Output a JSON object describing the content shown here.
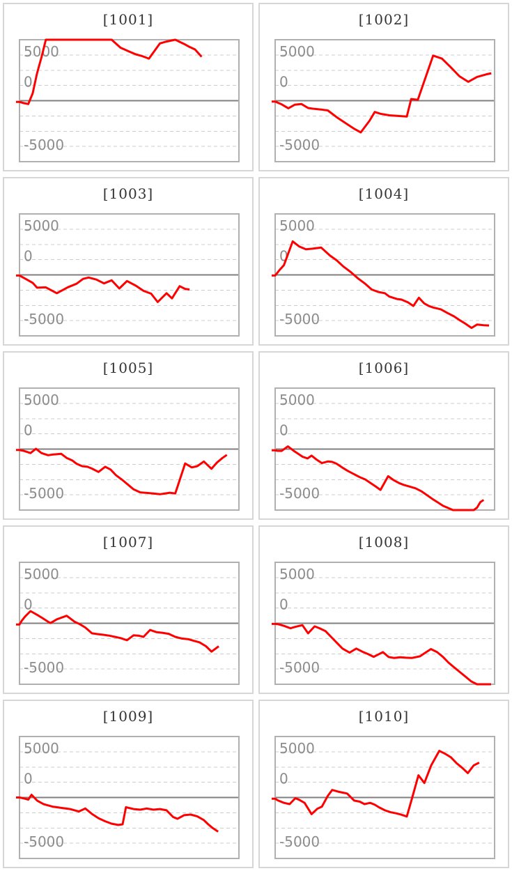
{
  "page": {
    "background": "#ffffff"
  },
  "colors": {
    "panel_border": "#d6d6d6",
    "plot_border": "#b0b0b0",
    "grid_line": "#cccccc",
    "zero_line": "#7f7f7f",
    "series": "#ff0000",
    "axis_label": "#8c8c8c",
    "title": "#333333"
  },
  "axis": {
    "y_min": -10000,
    "y_max": 10000,
    "grid_interval": 2500,
    "grid_style": "dashed",
    "zero_line_style": "solid",
    "tick_labels": [
      {
        "text": "5000",
        "value": 5000
      },
      {
        "text": "0",
        "value": 0
      },
      {
        "text": "-5000",
        "value": -5000
      }
    ]
  },
  "chart_data": [
    {
      "type": "line",
      "machine_id": "1001",
      "title": "[1001]",
      "x_unit": "percent_of_plot_width",
      "y_unit": "payout",
      "points": [
        [
          0,
          -200
        ],
        [
          2,
          -400
        ],
        [
          4,
          -550
        ],
        [
          6,
          1200
        ],
        [
          8,
          4500
        ],
        [
          10,
          7100
        ],
        [
          12,
          10000
        ],
        [
          42,
          10000
        ],
        [
          46,
          8700
        ],
        [
          50,
          8060
        ],
        [
          53,
          7600
        ],
        [
          56,
          7300
        ],
        [
          59,
          6900
        ],
        [
          64,
          9400
        ],
        [
          67,
          9700
        ],
        [
          71,
          10000
        ],
        [
          75,
          9300
        ],
        [
          77,
          8900
        ],
        [
          80,
          8400
        ],
        [
          83,
          7200
        ]
      ]
    },
    {
      "type": "line",
      "machine_id": "1002",
      "title": "[1002]",
      "x_unit": "percent_of_plot_width",
      "y_unit": "payout",
      "points": [
        [
          0,
          -150
        ],
        [
          3,
          -600
        ],
        [
          6,
          -1250
        ],
        [
          9,
          -650
        ],
        [
          12,
          -550
        ],
        [
          15,
          -1200
        ],
        [
          18,
          -1350
        ],
        [
          21,
          -1450
        ],
        [
          24,
          -1600
        ],
        [
          28,
          -2700
        ],
        [
          33,
          -3900
        ],
        [
          36,
          -4600
        ],
        [
          39,
          -5200
        ],
        [
          43,
          -3300
        ],
        [
          45.4,
          -1850
        ],
        [
          48,
          -2150
        ],
        [
          52,
          -2400
        ],
        [
          56,
          -2500
        ],
        [
          60,
          -2600
        ],
        [
          62,
          270
        ],
        [
          65,
          150
        ],
        [
          72,
          7400
        ],
        [
          76,
          6900
        ],
        [
          80,
          5500
        ],
        [
          84,
          4000
        ],
        [
          88,
          3100
        ],
        [
          92,
          3900
        ],
        [
          96,
          4300
        ],
        [
          98.5,
          4500
        ]
      ]
    },
    {
      "type": "line",
      "machine_id": "1003",
      "title": "[1003]",
      "x_unit": "percent_of_plot_width",
      "y_unit": "payout",
      "points": [
        [
          0,
          -100
        ],
        [
          3,
          -700
        ],
        [
          6,
          -1300
        ],
        [
          8,
          -2100
        ],
        [
          12,
          -2050
        ],
        [
          17,
          -3000
        ],
        [
          22,
          -2040
        ],
        [
          26,
          -1450
        ],
        [
          29,
          -650
        ],
        [
          31.5,
          -430
        ],
        [
          35,
          -770
        ],
        [
          38.5,
          -1390
        ],
        [
          42,
          -890
        ],
        [
          45.5,
          -2230
        ],
        [
          49,
          -1000
        ],
        [
          53,
          -1770
        ],
        [
          56.5,
          -2620
        ],
        [
          60,
          -3080
        ],
        [
          63,
          -4460
        ],
        [
          67,
          -3000
        ],
        [
          69.5,
          -3850
        ],
        [
          73,
          -1850
        ],
        [
          75.5,
          -2300
        ],
        [
          77.5,
          -2400
        ]
      ]
    },
    {
      "type": "line",
      "machine_id": "1004",
      "title": "[1004]",
      "x_unit": "percent_of_plot_width",
      "y_unit": "payout",
      "points": [
        [
          0,
          -100
        ],
        [
          2,
          800
        ],
        [
          4,
          1600
        ],
        [
          8,
          5500
        ],
        [
          11,
          4650
        ],
        [
          14,
          4200
        ],
        [
          17,
          4300
        ],
        [
          21,
          4480
        ],
        [
          25,
          3150
        ],
        [
          28,
          2400
        ],
        [
          31,
          1400
        ],
        [
          34.5,
          450
        ],
        [
          37.5,
          -500
        ],
        [
          41,
          -1450
        ],
        [
          44,
          -2400
        ],
        [
          47,
          -2800
        ],
        [
          50,
          -3000
        ],
        [
          52,
          -3550
        ],
        [
          55.5,
          -3950
        ],
        [
          57.5,
          -4050
        ],
        [
          60.5,
          -4500
        ],
        [
          63,
          -5100
        ],
        [
          65.5,
          -3750
        ],
        [
          68,
          -4700
        ],
        [
          70,
          -5100
        ],
        [
          72,
          -5350
        ],
        [
          75.5,
          -5650
        ],
        [
          78.5,
          -6250
        ],
        [
          81.5,
          -6800
        ],
        [
          84,
          -7400
        ],
        [
          86.5,
          -7950
        ],
        [
          89.5,
          -8700
        ],
        [
          92,
          -8150
        ],
        [
          95,
          -8250
        ],
        [
          97.5,
          -8300
        ]
      ]
    },
    {
      "type": "line",
      "machine_id": "1005",
      "title": "[1005]",
      "x_unit": "percent_of_plot_width",
      "y_unit": "payout",
      "points": [
        [
          0,
          -150
        ],
        [
          2,
          -300
        ],
        [
          5,
          -650
        ],
        [
          7.5,
          50
        ],
        [
          10,
          -650
        ],
        [
          13,
          -1000
        ],
        [
          15.5,
          -880
        ],
        [
          19,
          -780
        ],
        [
          21.5,
          -1450
        ],
        [
          24,
          -1850
        ],
        [
          26,
          -2400
        ],
        [
          28.5,
          -2800
        ],
        [
          31,
          -2900
        ],
        [
          33,
          -3200
        ],
        [
          36,
          -3750
        ],
        [
          39,
          -2900
        ],
        [
          41.5,
          -3350
        ],
        [
          44,
          -4300
        ],
        [
          47,
          -5100
        ],
        [
          49.5,
          -5850
        ],
        [
          52,
          -6600
        ],
        [
          55,
          -7100
        ],
        [
          58.5,
          -7200
        ],
        [
          61,
          -7280
        ],
        [
          64,
          -7400
        ],
        [
          66,
          -7300
        ],
        [
          68.5,
          -7150
        ],
        [
          71,
          -7280
        ],
        [
          75.5,
          -2350
        ],
        [
          78.5,
          -3000
        ],
        [
          81,
          -2800
        ],
        [
          84,
          -2040
        ],
        [
          87.5,
          -3230
        ],
        [
          90,
          -2200
        ],
        [
          92.5,
          -1450
        ],
        [
          94.5,
          -950
        ]
      ]
    },
    {
      "type": "line",
      "machine_id": "1006",
      "title": "[1006]",
      "x_unit": "percent_of_plot_width",
      "y_unit": "payout",
      "points": [
        [
          0,
          -200
        ],
        [
          1,
          -280
        ],
        [
          3,
          -300
        ],
        [
          5.8,
          450
        ],
        [
          8.5,
          -300
        ],
        [
          10.5,
          -770
        ],
        [
          12.5,
          -1260
        ],
        [
          14.8,
          -1530
        ],
        [
          16.6,
          -1070
        ],
        [
          19,
          -1760
        ],
        [
          21.3,
          -2300
        ],
        [
          24,
          -2030
        ],
        [
          26,
          -2100
        ],
        [
          28,
          -2400
        ],
        [
          30.5,
          -3000
        ],
        [
          33,
          -3560
        ],
        [
          36,
          -4130
        ],
        [
          38.5,
          -4590
        ],
        [
          41,
          -4970
        ],
        [
          43.5,
          -5580
        ],
        [
          45.8,
          -6120
        ],
        [
          48,
          -6700
        ],
        [
          51.5,
          -4450
        ],
        [
          54,
          -5100
        ],
        [
          56.5,
          -5580
        ],
        [
          58.5,
          -5860
        ],
        [
          61,
          -6120
        ],
        [
          64,
          -6430
        ],
        [
          66.5,
          -6890
        ],
        [
          69,
          -7500
        ],
        [
          71.5,
          -8140
        ],
        [
          74,
          -8720
        ],
        [
          76.5,
          -9300
        ],
        [
          79,
          -9680
        ],
        [
          81,
          -10000
        ],
        [
          90.5,
          -10000
        ],
        [
          92,
          -9600
        ],
        [
          93.5,
          -8700
        ],
        [
          95,
          -8340
        ]
      ]
    },
    {
      "type": "line",
      "machine_id": "1007",
      "title": "[1007]",
      "x_unit": "percent_of_plot_width",
      "y_unit": "payout",
      "points": [
        [
          0,
          -200
        ],
        [
          1,
          400
        ],
        [
          2.5,
          1100
        ],
        [
          5,
          2000
        ],
        [
          8,
          1400
        ],
        [
          10.5,
          850
        ],
        [
          13,
          250
        ],
        [
          14.2,
          50
        ],
        [
          17,
          650
        ],
        [
          21.5,
          1230
        ],
        [
          25,
          270
        ],
        [
          27.5,
          -150
        ],
        [
          30,
          -700
        ],
        [
          33,
          -1650
        ],
        [
          35.8,
          -1780
        ],
        [
          38.5,
          -1900
        ],
        [
          41,
          -2040
        ],
        [
          43.5,
          -2230
        ],
        [
          46,
          -2420
        ],
        [
          49,
          -2780
        ],
        [
          52,
          -1960
        ],
        [
          54.5,
          -2050
        ],
        [
          56.5,
          -2230
        ],
        [
          59.5,
          -1100
        ],
        [
          62.5,
          -1460
        ],
        [
          65,
          -1550
        ],
        [
          68,
          -1730
        ],
        [
          71,
          -2230
        ],
        [
          74,
          -2500
        ],
        [
          77,
          -2615
        ],
        [
          79.5,
          -2880
        ],
        [
          82,
          -3115
        ],
        [
          85,
          -3770
        ],
        [
          87.5,
          -4650
        ],
        [
          90.8,
          -3770
        ]
      ]
    },
    {
      "type": "line",
      "machine_id": "1008",
      "title": "[1008]",
      "x_unit": "percent_of_plot_width",
      "y_unit": "payout",
      "points": [
        [
          0,
          -100
        ],
        [
          1.4,
          -150
        ],
        [
          4,
          -420
        ],
        [
          7,
          -810
        ],
        [
          9.2,
          -580
        ],
        [
          12.4,
          -310
        ],
        [
          15,
          -1650
        ],
        [
          18,
          -500
        ],
        [
          20.2,
          -810
        ],
        [
          22.9,
          -1270
        ],
        [
          25.5,
          -2230
        ],
        [
          28.1,
          -3190
        ],
        [
          30.7,
          -4150
        ],
        [
          33.9,
          -4810
        ],
        [
          37,
          -4150
        ],
        [
          39.7,
          -4650
        ],
        [
          42.3,
          -5040
        ],
        [
          44.9,
          -5500
        ],
        [
          47,
          -5115
        ],
        [
          49.1,
          -4730
        ],
        [
          51.7,
          -5530
        ],
        [
          54.3,
          -5690
        ],
        [
          57,
          -5580
        ],
        [
          59.6,
          -5650
        ],
        [
          62.2,
          -5690
        ],
        [
          66,
          -5420
        ],
        [
          68,
          -4920
        ],
        [
          71,
          -4230
        ],
        [
          73.8,
          -4730
        ],
        [
          76.4,
          -5500
        ],
        [
          79,
          -6460
        ],
        [
          81.6,
          -7230
        ],
        [
          84.2,
          -8000
        ],
        [
          86.8,
          -8770
        ],
        [
          89.4,
          -9540
        ],
        [
          92,
          -10000
        ],
        [
          98.4,
          -10000
        ]
      ]
    },
    {
      "type": "line",
      "machine_id": "1009",
      "title": "[1009]",
      "x_unit": "percent_of_plot_width",
      "y_unit": "payout",
      "points": [
        [
          0,
          0
        ],
        [
          2,
          -150
        ],
        [
          4,
          -350
        ],
        [
          5.5,
          450
        ],
        [
          8,
          -500
        ],
        [
          11,
          -1100
        ],
        [
          15,
          -1500
        ],
        [
          19,
          -1700
        ],
        [
          23,
          -1900
        ],
        [
          27,
          -2300
        ],
        [
          30,
          -1800
        ],
        [
          33,
          -2700
        ],
        [
          36,
          -3400
        ],
        [
          39,
          -3900
        ],
        [
          42,
          -4300
        ],
        [
          45,
          -4500
        ],
        [
          47,
          -4400
        ],
        [
          48.5,
          -1600
        ],
        [
          52,
          -1900
        ],
        [
          55,
          -2000
        ],
        [
          58,
          -1800
        ],
        [
          61,
          -2000
        ],
        [
          64,
          -1900
        ],
        [
          67,
          -2100
        ],
        [
          70,
          -3200
        ],
        [
          72,
          -3500
        ],
        [
          75,
          -2900
        ],
        [
          78,
          -2800
        ],
        [
          81,
          -3100
        ],
        [
          84,
          -3700
        ],
        [
          86,
          -4400
        ],
        [
          88,
          -5000
        ],
        [
          90.5,
          -5600
        ]
      ]
    },
    {
      "type": "line",
      "machine_id": "1010",
      "title": "[1010]",
      "x_unit": "percent_of_plot_width",
      "y_unit": "payout",
      "points": [
        [
          0,
          -200
        ],
        [
          1.4,
          -500
        ],
        [
          4,
          -880
        ],
        [
          6.6,
          -1080
        ],
        [
          9.2,
          -120
        ],
        [
          10.8,
          -350
        ],
        [
          13.4,
          -880
        ],
        [
          16.6,
          -2730
        ],
        [
          19.2,
          -1850
        ],
        [
          21.3,
          -1500
        ],
        [
          24,
          270
        ],
        [
          26,
          1230
        ],
        [
          28.7,
          960
        ],
        [
          30.8,
          800
        ],
        [
          32.8,
          650
        ],
        [
          36,
          -500
        ],
        [
          38.6,
          -690
        ],
        [
          40.7,
          -1080
        ],
        [
          43.3,
          -880
        ],
        [
          45.4,
          -1190
        ],
        [
          47.5,
          -1650
        ],
        [
          50.1,
          -2115
        ],
        [
          52.7,
          -2420
        ],
        [
          55.3,
          -2600
        ],
        [
          57.4,
          -2810
        ],
        [
          60,
          -3115
        ],
        [
          62.7,
          270
        ],
        [
          65.3,
          3650
        ],
        [
          68,
          2380
        ],
        [
          71.1,
          5270
        ],
        [
          74.8,
          7650
        ],
        [
          77.4,
          7190
        ],
        [
          80,
          6615
        ],
        [
          82.6,
          5650
        ],
        [
          85.2,
          4880
        ],
        [
          87.8,
          4000
        ],
        [
          90.5,
          5270
        ],
        [
          93,
          5730
        ]
      ]
    }
  ]
}
